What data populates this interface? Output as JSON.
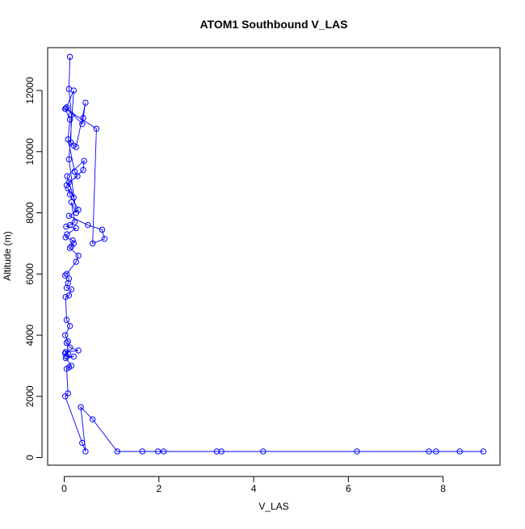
{
  "chart_data": {
    "type": "line",
    "title": "ATOM1 Southbound V_LAS",
    "xlabel": "V_LAS",
    "ylabel": "Altitude (m)",
    "xlim": [
      -0.35,
      9.2
    ],
    "ylim": [
      -250,
      13400
    ],
    "xticks": [
      0,
      2,
      4,
      6,
      8
    ],
    "yticks": [
      0,
      2000,
      4000,
      6000,
      8000,
      10000,
      12000
    ],
    "grid": false,
    "marker": "open-circle",
    "colors": {
      "series": "#0000ff",
      "axis": "#000000"
    },
    "series": [
      {
        "name": "",
        "x": [
          0.12,
          0.1,
          0.15,
          0.14,
          0.2,
          0.25,
          0.45,
          0.4,
          0.38,
          0.05,
          0.02,
          0.12,
          0.08,
          0.22,
          0.28,
          0.1,
          0.05,
          0.4,
          0.42,
          0.06,
          0.2,
          0.08,
          0.12,
          0.3,
          0.1,
          0.5,
          0.8,
          0.85,
          0.6,
          0.68,
          0.03,
          0.2,
          0.1,
          0.25,
          0.15,
          0.22,
          0.12,
          0.04,
          0.25,
          0.06,
          0.03,
          0.18,
          0.2,
          0.15,
          0.12,
          0.3,
          0.25,
          0.05,
          0.02,
          0.1,
          0.08,
          0.05,
          0.15,
          0.1,
          0.03,
          0.05,
          0.12,
          0.02,
          0.08,
          0.05,
          0.12,
          0.3,
          0.03,
          0.08,
          0.02,
          0.05,
          0.2,
          0.03,
          0.15,
          0.1,
          0.05,
          0.08,
          0.02,
          0.38,
          0.45,
          0.35,
          0.6,
          1.12,
          1.65,
          1.98,
          2.1,
          3.22,
          3.32,
          4.2,
          6.18,
          7.7,
          7.85,
          8.35,
          8.85
        ],
        "y": [
          13100,
          12050,
          11200,
          10300,
          10200,
          10150,
          11600,
          11100,
          10900,
          11450,
          11400,
          11050,
          10400,
          9350,
          9200,
          9000,
          8900,
          9400,
          9700,
          9200,
          8500,
          8800,
          8600,
          8100,
          7900,
          7600,
          7450,
          7150,
          7000,
          10750,
          11400,
          12000,
          9750,
          8000,
          8350,
          7700,
          7600,
          7550,
          7500,
          7300,
          7200,
          7100,
          7000,
          6900,
          6850,
          6600,
          6400,
          6000,
          5950,
          5850,
          5700,
          5550,
          5500,
          5300,
          5250,
          4500,
          4300,
          4000,
          3800,
          3750,
          3600,
          3500,
          3450,
          3400,
          3400,
          3300,
          3300,
          3250,
          3000,
          2950,
          2900,
          2100,
          2000,
          480,
          200,
          1650,
          1250,
          200,
          200,
          200,
          200,
          200,
          200,
          200,
          200,
          200,
          200,
          200,
          200
        ]
      }
    ]
  }
}
